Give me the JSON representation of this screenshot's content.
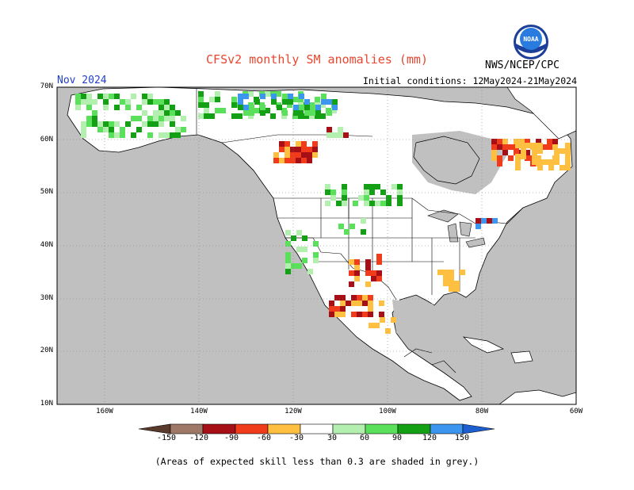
{
  "title": "CFSv2 monthly SM anomalies (mm)",
  "month": "Nov 2024",
  "initial_conditions": "Initial conditions: 12May2024-21May2024",
  "agency": "NWS/NCEP/CPC",
  "logo_text": "NOAA",
  "footnote": "(Areas of expected skill less than 0.3 are shaded in grey.)",
  "lat_labels": [
    "70N",
    "60N",
    "50N",
    "40N",
    "30N",
    "20N",
    "10N"
  ],
  "lon_labels": [
    "160W",
    "140W",
    "120W",
    "100W",
    "80W",
    "60W"
  ],
  "colorbar": {
    "labels": [
      "-150",
      "-120",
      "-90",
      "-60",
      "-30",
      "30",
      "60",
      "90",
      "120",
      "150"
    ],
    "colors": [
      "#5a3a2c",
      "#a07868",
      "#a50f15",
      "#f03c1a",
      "#ffbf40",
      "#ffffff",
      "#b3f0b0",
      "#5ae05a",
      "#14a014",
      "#3c96f0",
      "#1e5fd0"
    ]
  },
  "map_colors": {
    "ocean": "#ffffff",
    "low_skill": "#c0c0c0",
    "land_white": "#ffffff"
  }
}
